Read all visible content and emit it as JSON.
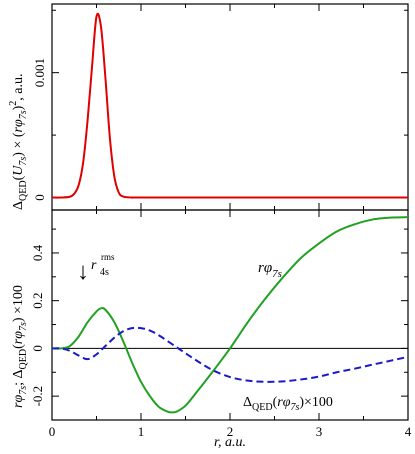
{
  "chart_data": [
    {
      "type": "line",
      "panel": "top",
      "ylabel": "Δ_QED(U_7s) × (rφ_7s)², a.u.",
      "ylabel_parts": {
        "delta": "Δ",
        "qed": "QED",
        "u": "U",
        "sub": "7s",
        "times": "×",
        "rphi": "rφ",
        "sq": "2",
        "unit": ", a.u."
      },
      "xlim": [
        0,
        4
      ],
      "ylim": [
        -0.0001,
        0.00155
      ],
      "x_ticks": [
        0,
        1,
        2,
        3,
        4
      ],
      "y_ticks": [
        0,
        0.001
      ],
      "y_tick_labels": [
        "0",
        "0.001"
      ],
      "grid": false,
      "series": [
        {
          "color": "#e00000",
          "x": [
            0.0,
            0.1,
            0.2,
            0.25,
            0.3,
            0.35,
            0.4,
            0.45,
            0.5,
            0.55,
            0.6,
            0.65,
            0.7,
            0.75,
            0.8,
            0.9,
            1.0,
            2.0,
            3.0,
            4.0
          ],
          "y": [
            0.0,
            0.0,
            6e-06,
            3e-05,
            0.0001,
            0.00028,
            0.00062,
            0.00105,
            0.00145,
            0.00137,
            0.00096,
            0.00048,
            0.00017,
            4e-05,
            8e-06,
            0.0,
            0.0,
            0.0,
            0.0,
            0.0
          ]
        }
      ]
    },
    {
      "type": "line",
      "panel": "bottom",
      "xlabel": "r, a.u.",
      "ylabel": "rφ_7s; Δ_QED(rφ_7s) ×100",
      "ylabel_parts": {
        "rphi": "rφ",
        "sub": "7s",
        "sep": "; ",
        "delta": "Δ",
        "qed": "QED",
        "open": "(",
        "close": ")",
        "times100": " ×100"
      },
      "xlim": [
        0,
        4
      ],
      "ylim": [
        -0.3,
        0.58
      ],
      "x_ticks": [
        0,
        1,
        2,
        3,
        4
      ],
      "x_tick_labels": [
        "0",
        "1",
        "2",
        "3",
        "4"
      ],
      "y_ticks": [
        -0.2,
        0,
        0.2,
        0.4
      ],
      "y_tick_labels": [
        "-0.2",
        "0",
        "0.2",
        "0.4"
      ],
      "zero_line": true,
      "grid": false,
      "series": [
        {
          "color": "#22a022",
          "dash": "solid",
          "label_parts": {
            "rphi": "rφ",
            "sub": "7s"
          },
          "x": [
            0.0,
            0.1,
            0.2,
            0.3,
            0.4,
            0.5,
            0.55,
            0.6,
            0.7,
            0.8,
            0.9,
            1.0,
            1.1,
            1.2,
            1.3,
            1.35,
            1.4,
            1.5,
            1.6,
            1.8,
            2.0,
            2.2,
            2.4,
            2.6,
            2.8,
            3.0,
            3.2,
            3.4,
            3.6,
            3.8,
            4.0
          ],
          "y": [
            0.0,
            0.0,
            0.01,
            0.05,
            0.11,
            0.155,
            0.168,
            0.162,
            0.11,
            0.03,
            -0.06,
            -0.14,
            -0.2,
            -0.245,
            -0.265,
            -0.268,
            -0.265,
            -0.24,
            -0.195,
            -0.1,
            0.0,
            0.11,
            0.21,
            0.3,
            0.38,
            0.44,
            0.49,
            0.52,
            0.54,
            0.548,
            0.55
          ]
        },
        {
          "color": "#1a1acc",
          "dash": "dashed",
          "label_parts": {
            "delta": "Δ",
            "qed": "QED",
            "rphi": "rφ",
            "sub": "7s",
            "times100": "×100"
          },
          "x": [
            0.0,
            0.1,
            0.2,
            0.3,
            0.4,
            0.5,
            0.6,
            0.7,
            0.8,
            0.9,
            1.0,
            1.1,
            1.2,
            1.4,
            1.6,
            1.8,
            2.0,
            2.2,
            2.4,
            2.6,
            2.8,
            3.0,
            3.2,
            3.4,
            3.6,
            3.8,
            4.0
          ],
          "y": [
            0.0,
            0.0,
            -0.01,
            -0.03,
            -0.045,
            -0.025,
            0.01,
            0.045,
            0.072,
            0.085,
            0.085,
            0.075,
            0.055,
            0.005,
            -0.045,
            -0.09,
            -0.12,
            -0.135,
            -0.14,
            -0.138,
            -0.13,
            -0.118,
            -0.1,
            -0.085,
            -0.068,
            -0.052,
            -0.035
          ]
        }
      ],
      "annotation": {
        "arrow": "↓",
        "r": "r",
        "sup": "rms",
        "sub": "4s"
      }
    }
  ]
}
